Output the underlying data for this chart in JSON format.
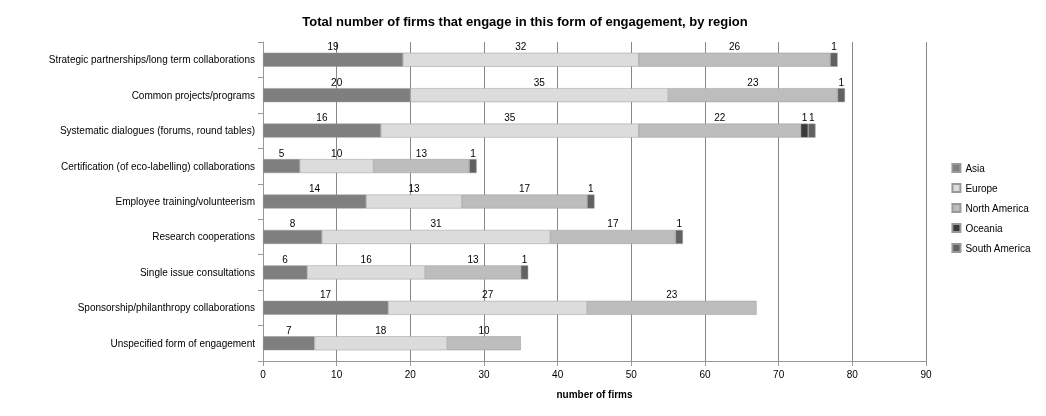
{
  "chart_data": {
    "type": "bar",
    "orientation": "horizontal",
    "stacked": true,
    "title": "Total number of firms that engage in this form of engagement, by region",
    "xlabel": "number of firms",
    "categories": [
      "Strategic partnerships/long term collaborations",
      "Common projects/programs",
      "Systematic dialogues (forums, round tables)",
      "Certification (of eco-labelling) collaborations",
      "Employee training/volunteerism",
      "Research cooperations",
      "Single issue consultations",
      "Sponsorship/philanthropy collaborations",
      "Unspecified form of engagement"
    ],
    "series": [
      {
        "name": "Asia",
        "color": "#7f7f7f",
        "values": [
          19,
          20,
          16,
          5,
          14,
          8,
          6,
          17,
          7
        ]
      },
      {
        "name": "Europe",
        "color": "#dcdcdc",
        "values": [
          32,
          35,
          35,
          10,
          13,
          31,
          16,
          27,
          18
        ]
      },
      {
        "name": "North America",
        "color": "#bdbdbd",
        "values": [
          26,
          23,
          22,
          13,
          17,
          17,
          13,
          23,
          10
        ]
      },
      {
        "name": "Oceania",
        "color": "#3a3a3a",
        "values": [
          null,
          null,
          1,
          null,
          null,
          null,
          null,
          null,
          null
        ]
      },
      {
        "name": "South America",
        "color": "#616161",
        "values": [
          1,
          1,
          1,
          1,
          1,
          1,
          1,
          null,
          null
        ]
      }
    ],
    "xlim": [
      0,
      90
    ],
    "xticks": [
      0,
      10,
      20,
      30,
      40,
      50,
      60,
      70,
      80,
      90
    ],
    "grid": "x",
    "legend": "right",
    "data_labels": true
  }
}
